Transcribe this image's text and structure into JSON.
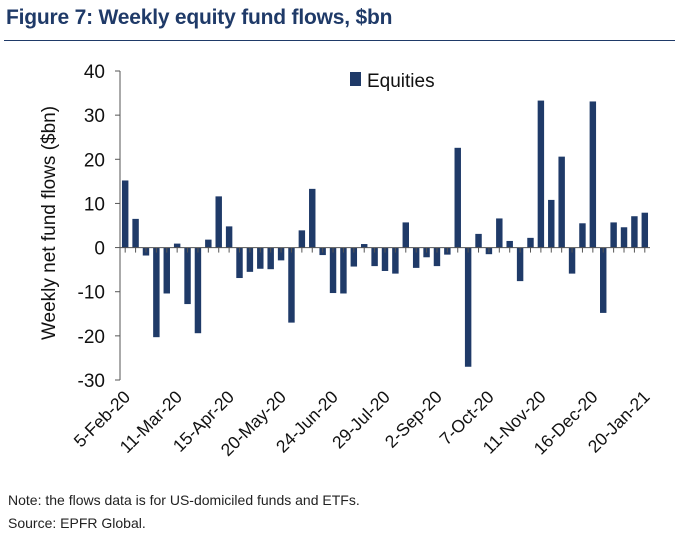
{
  "header": {
    "title": "Figure 7: Weekly equity fund flows, $bn"
  },
  "footer": {
    "note": "Note: the flows data is for US-domiciled funds and ETFs.",
    "source": "Source: EPFR Global."
  },
  "chart_data": {
    "type": "bar",
    "title": "Figure 7: Weekly equity fund flows, $bn",
    "xlabel": "",
    "ylabel": "Weekly net fund flows ($bn)",
    "ylim": [
      -30,
      40
    ],
    "yticks": [
      -30,
      -20,
      -10,
      0,
      10,
      20,
      30,
      40
    ],
    "grid": false,
    "legend_position": "top-center",
    "bar_color": "#1f3a68",
    "x_tick_labels": [
      "5-Feb-20",
      "11-Mar-20",
      "15-Apr-20",
      "20-May-20",
      "24-Jun-20",
      "29-Jul-20",
      "2-Sep-20",
      "7-Oct-20",
      "11-Nov-20",
      "16-Dec-20",
      "20-Jan-21"
    ],
    "series": [
      {
        "name": "Equities",
        "values": [
          15.2,
          6.5,
          -1.8,
          -20.3,
          -10.4,
          0.9,
          -12.8,
          -19.4,
          1.8,
          11.6,
          4.8,
          -6.9,
          -5.5,
          -4.8,
          -4.9,
          -2.9,
          -17.0,
          3.9,
          13.3,
          -1.7,
          -10.3,
          -10.4,
          -4.3,
          0.8,
          -4.2,
          -5.3,
          -5.9,
          5.7,
          -4.6,
          -2.2,
          -4.2,
          -1.6,
          22.6,
          -27.0,
          3.1,
          -1.5,
          6.6,
          1.5,
          -7.6,
          2.2,
          33.3,
          10.8,
          20.6,
          -5.9,
          5.5,
          33.1,
          -14.8,
          5.7,
          4.6,
          7.1,
          7.9
        ]
      }
    ]
  }
}
